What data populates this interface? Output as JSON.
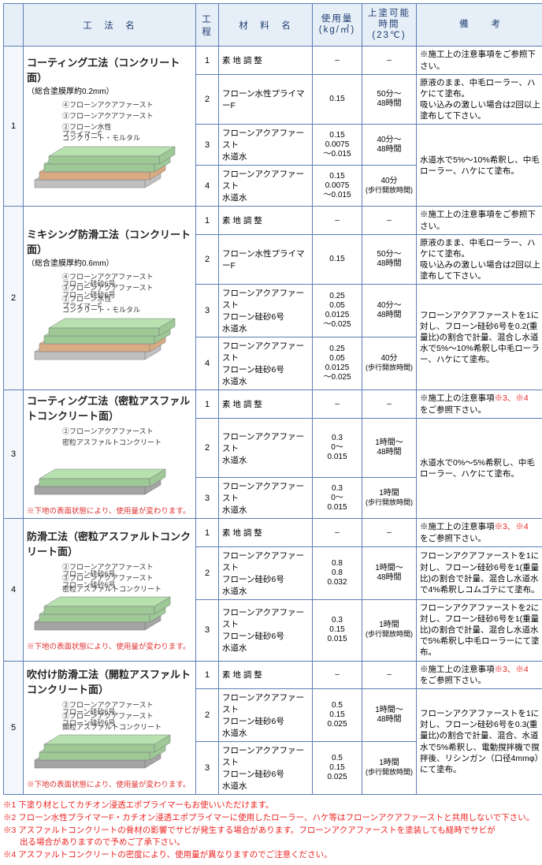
{
  "headers": {
    "method": "工　法　名",
    "step": "工程",
    "material": "材　料　名",
    "usage": "使用量\n(kg/㎡)",
    "time": "上塗可能時間\n(23℃)",
    "note": "備　　考"
  },
  "methods": [
    {
      "idx": "1",
      "title": "コーティング工法（コンクリート面）",
      "sub": "（総合塗膜厚約0.2mm）",
      "diagram_labels": [
        "④フローンアクアファースト",
        "③フローンアクアファースト",
        "②フローン水性\nプライマーF",
        "コンクリート・モルタル"
      ],
      "layer_colors": [
        "#b7e2b0",
        "#b7e2b0",
        "#f2c49c",
        "#d9d9d9"
      ],
      "warn": "",
      "rows": [
        {
          "step": "1",
          "mat": "素 地 調 整",
          "use": "–",
          "time": "–",
          "note": "※施工上の注意事項をご参照下さい。",
          "note_span": 1
        },
        {
          "step": "2",
          "mat": "フローン水性プライマーF",
          "use": "0.15",
          "time": "50分～\n48時間",
          "note": "原液のまま、中毛ローラー、ハケにて塗布。\n吸い込みの激しい場合は2回以上塗布して下さい。",
          "note_span": 1
        },
        {
          "step": "3",
          "mat": "フローンアクアファースト\n水道水",
          "use": "0.15\n0.0075\n～0.015",
          "time": "40分～\n48時間",
          "note": "水道水で5%～10%希釈し、中毛ローラー、ハケにて塗布。",
          "note_span": 2
        },
        {
          "step": "4",
          "mat": "フローンアクアファースト\n水道水",
          "use": "0.15\n0.0075\n～0.015",
          "time": "40分\n(歩行開放時間)",
          "note": ""
        }
      ]
    },
    {
      "idx": "2",
      "title": "ミキシング防滑工法（コンクリート面）",
      "sub": "（総合塗膜厚約0.6mm）",
      "diagram_labels": [
        "④フローンアクアファースト\nフローン硅砂6号",
        "③フローンアクアファースト\nフローン硅砂6号",
        "②フローン水性\nプライマーF",
        "コンクリート・モルタル"
      ],
      "layer_colors": [
        "#b7e2b0",
        "#b7e2b0",
        "#f2c49c",
        "#d9d9d9"
      ],
      "warn": "",
      "rows": [
        {
          "step": "1",
          "mat": "素 地 調 整",
          "use": "–",
          "time": "–",
          "note": "※施工上の注意事項をご参照下さい。",
          "note_span": 1
        },
        {
          "step": "2",
          "mat": "フローン水性プライマーF",
          "use": "0.15",
          "time": "50分～\n48時間",
          "note": "原液のまま、中毛ローラー、ハケにて塗布。\n吸い込みの激しい場合は2回以上塗布して下さい。",
          "note_span": 1
        },
        {
          "step": "3",
          "mat": "フローンアクアファースト\nフローン硅砂6号\n水道水",
          "use": "0.25\n0.05\n0.0125\n～0.025",
          "time": "40分～\n48時間",
          "note": "フローンアクアファーストを1に対し、フローン硅砂6号を0.2(重量比)の割合で計量、混合し水道水で5%～10%希釈し中毛ローラー、ハケにて塗布。",
          "note_span": 2
        },
        {
          "step": "4",
          "mat": "フローンアクアファースト\nフローン硅砂6号\n水道水",
          "use": "0.25\n0.05\n0.0125\n～0.025",
          "time": "40分\n(歩行開放時間)",
          "note": ""
        }
      ]
    },
    {
      "idx": "3",
      "title": "コーティング工法（密粒アスファルトコンクリート面）",
      "sub": "",
      "diagram_labels": [
        "②フローンアクアファースト",
        "密粒アスファルトコンクリート"
      ],
      "layer_colors": [
        "#b7e2b0",
        "#bdbdbd"
      ],
      "warn": "※下地の表面状態により、使用量が変わります。",
      "rows": [
        {
          "step": "1",
          "mat": "素 地 調 整",
          "use": "–",
          "time": "–",
          "note": "※施工上の注意事項※3、※4\nをご参照下さい。",
          "note_span": 1,
          "red": true
        },
        {
          "step": "2",
          "mat": "フローンアクアファースト\n水道水",
          "use": "0.3\n0～\n0.015",
          "time": "1時間～\n48時間",
          "note": "水道水で0%～5%希釈し、中毛ローラー、ハケにて塗布。",
          "note_span": 2
        },
        {
          "step": "3",
          "mat": "フローンアクアファースト\n水道水",
          "use": "0.3\n0～\n0.015",
          "time": "1時間\n(歩行開放時間)",
          "note": ""
        }
      ]
    },
    {
      "idx": "4",
      "title": "防滑工法（密粒アスファルトコンクリート面）",
      "sub": "",
      "diagram_labels": [
        "②フローンアクアファースト\nフローン硅砂6号",
        "③フローンアクアファースト\nフローン硅砂6号",
        "密粒アスファルトコンクリート"
      ],
      "layer_colors": [
        "#b7e2b0",
        "#b7e2b0",
        "#bdbdbd"
      ],
      "warn": "※下地の表面状態により、使用量が変わります。",
      "rows": [
        {
          "step": "1",
          "mat": "素 地 調 整",
          "use": "–",
          "time": "–",
          "note": "※施工上の注意事項※3、※4\nをご参照下さい。",
          "note_span": 1,
          "red": true
        },
        {
          "step": "2",
          "mat": "フローンアクアファースト\nフローン硅砂6号\n水道水",
          "use": "0.8\n0.8\n0.032",
          "time": "1時間～\n48時間",
          "note": "フローンアクアファーストを1に対し、フローン硅砂6号を1(重量比)の割合で計量、混合し水道水で4%希釈しコムゴテにて塗布。",
          "note_span": 1
        },
        {
          "step": "3",
          "mat": "フローンアクアファースト\nフローン硅砂6号\n水道水",
          "use": "0.3\n0.15\n0.015",
          "time": "1時間\n(歩行開放時間)",
          "note": "フローンアクアファーストを2に対し、フローン硅砂6号を1(重量比)の割合で計量、混合し水道水で5%希釈し中毛ローラーにて塗布。",
          "note_span": 1
        }
      ]
    },
    {
      "idx": "5",
      "title": "吹付け防滑工法（開粒アスファルトコンクリート面）",
      "sub": "",
      "diagram_labels": [
        "②フローンアクアファースト\nフローン硅砂6号",
        "③フローンアクアファースト\nフローン硅砂6号",
        "開粒アスファルトコンクリート"
      ],
      "layer_colors": [
        "#b7e2b0",
        "#b7e2b0",
        "#bdbdbd"
      ],
      "warn": "※下地の表面状態により、使用量が変わります。",
      "rows": [
        {
          "step": "1",
          "mat": "素 地 調 整",
          "use": "–",
          "time": "–",
          "note": "※施工上の注意事項※3、※4\nをご参照下さい。",
          "note_span": 1,
          "red": true
        },
        {
          "step": "2",
          "mat": "フローンアクアファースト\nフローン硅砂6号\n水道水",
          "use": "0.5\n0.15\n0.025",
          "time": "1時間～\n48時間",
          "note": "フローンアクアファーストを1に対し、フローン硅砂6号を0.3(重量比)の割合で計量、混合、水道水で5%希釈し、電動撹拌機で撹拌後、リシンガン（口径4mmφ）にて塗布。",
          "note_span": 2
        },
        {
          "step": "3",
          "mat": "フローンアクアファースト\nフローン硅砂6号\n水道水",
          "use": "0.5\n0.15\n0.025",
          "time": "1時間\n(歩行開放時間)",
          "note": ""
        }
      ]
    }
  ],
  "footnotes": [
    "※1 下塗り材としてカチオン浸透エポプライマーもお使いいただけます。",
    "※2 フローン水性プライマーF・カチオン浸透エポプライマーに使用したローラー、ハケ等はフローンアクアファーストと共用しないで下さい。",
    "※3 アスファルトコンクリートの骨材の影響でサビが発生する場合があります。フローンアクアファーストを塗装しても経時でサビが\n　　出る場合がありますので予めご了承下さい。",
    "※4 アスファルトコンクリートの密度により、使用量が異なりますのでご注意ください。"
  ]
}
